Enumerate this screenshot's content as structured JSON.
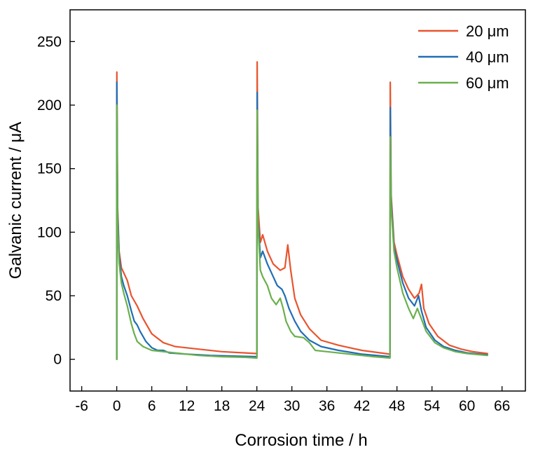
{
  "chart_data": {
    "type": "line",
    "xlabel": "Corrosion time / h",
    "ylabel": "Galvanic current / μA",
    "xlim": [
      -8,
      70
    ],
    "ylim": [
      -25,
      275
    ],
    "xticks": [
      -6,
      0,
      6,
      12,
      18,
      24,
      30,
      36,
      42,
      48,
      54,
      60,
      66
    ],
    "yticks": [
      0,
      50,
      100,
      150,
      200,
      250
    ],
    "grid": false,
    "legend_position": "top-right",
    "series": [
      {
        "name": "20 μm",
        "color": "#e8542e",
        "points": [
          [
            0,
            0
          ],
          [
            0.02,
            226
          ],
          [
            0.15,
            120
          ],
          [
            0.4,
            85
          ],
          [
            0.8,
            72
          ],
          [
            1.2,
            68
          ],
          [
            1.8,
            62
          ],
          [
            2.5,
            50
          ],
          [
            3.5,
            42
          ],
          [
            4.5,
            32
          ],
          [
            6,
            20
          ],
          [
            8,
            13
          ],
          [
            10,
            10
          ],
          [
            14,
            8
          ],
          [
            18,
            6
          ],
          [
            22,
            5
          ],
          [
            24,
            4.5
          ],
          [
            24.05,
            234
          ],
          [
            24.2,
            120
          ],
          [
            24.6,
            92
          ],
          [
            25,
            98
          ],
          [
            25.8,
            85
          ],
          [
            26.8,
            75
          ],
          [
            28,
            70
          ],
          [
            28.8,
            72
          ],
          [
            29.3,
            90
          ],
          [
            29.8,
            70
          ],
          [
            30.5,
            48
          ],
          [
            31.5,
            35
          ],
          [
            33,
            24
          ],
          [
            35,
            15
          ],
          [
            38,
            11
          ],
          [
            42,
            7
          ],
          [
            46,
            4.5
          ],
          [
            46.8,
            4
          ],
          [
            46.85,
            218
          ],
          [
            47,
            130
          ],
          [
            47.5,
            92
          ],
          [
            48,
            82
          ],
          [
            49,
            65
          ],
          [
            50,
            55
          ],
          [
            51,
            48
          ],
          [
            51.8,
            52
          ],
          [
            52.2,
            59
          ],
          [
            52.6,
            40
          ],
          [
            53.5,
            28
          ],
          [
            55,
            18
          ],
          [
            57,
            11
          ],
          [
            59,
            8
          ],
          [
            61,
            6
          ],
          [
            63.5,
            4.5
          ]
        ]
      },
      {
        "name": "40 μm",
        "color": "#1f6eb5",
        "points": [
          [
            0,
            0
          ],
          [
            0.02,
            218
          ],
          [
            0.15,
            115
          ],
          [
            0.4,
            82
          ],
          [
            0.8,
            65
          ],
          [
            1.2,
            58
          ],
          [
            1.8,
            50
          ],
          [
            2.5,
            38
          ],
          [
            3,
            30
          ],
          [
            3.5,
            27
          ],
          [
            4,
            22
          ],
          [
            5,
            14
          ],
          [
            6,
            9
          ],
          [
            7,
            7
          ],
          [
            8,
            7
          ],
          [
            9,
            5
          ],
          [
            12,
            4
          ],
          [
            16,
            3
          ],
          [
            20,
            2.5
          ],
          [
            24,
            2
          ],
          [
            24.05,
            210
          ],
          [
            24.2,
            110
          ],
          [
            24.6,
            80
          ],
          [
            25,
            85
          ],
          [
            25.8,
            75
          ],
          [
            26.8,
            65
          ],
          [
            27.5,
            58
          ],
          [
            28.3,
            55
          ],
          [
            28.8,
            50
          ],
          [
            29.5,
            40
          ],
          [
            30.5,
            30
          ],
          [
            31.5,
            22
          ],
          [
            33,
            15
          ],
          [
            35,
            10
          ],
          [
            38,
            7
          ],
          [
            42,
            4
          ],
          [
            46.8,
            2
          ],
          [
            46.85,
            198
          ],
          [
            47,
            125
          ],
          [
            47.5,
            88
          ],
          [
            48,
            78
          ],
          [
            49,
            60
          ],
          [
            50,
            48
          ],
          [
            51,
            42
          ],
          [
            51.7,
            50
          ],
          [
            52.2,
            38
          ],
          [
            53,
            25
          ],
          [
            54.5,
            15
          ],
          [
            56,
            10
          ],
          [
            58,
            7
          ],
          [
            60,
            5
          ],
          [
            63.5,
            3.5
          ]
        ]
      },
      {
        "name": "60 μm",
        "color": "#6ab04c",
        "points": [
          [
            0,
            0
          ],
          [
            0.02,
            200
          ],
          [
            0.15,
            105
          ],
          [
            0.4,
            76
          ],
          [
            0.8,
            60
          ],
          [
            1.2,
            52
          ],
          [
            1.8,
            42
          ],
          [
            2.5,
            28
          ],
          [
            3,
            20
          ],
          [
            3.5,
            14
          ],
          [
            4.5,
            10
          ],
          [
            6,
            7
          ],
          [
            8,
            6
          ],
          [
            10,
            5
          ],
          [
            14,
            3
          ],
          [
            18,
            2
          ],
          [
            22,
            1.5
          ],
          [
            24,
            1
          ],
          [
            24.05,
            196
          ],
          [
            24.2,
            105
          ],
          [
            24.6,
            70
          ],
          [
            25,
            65
          ],
          [
            25.8,
            58
          ],
          [
            26.5,
            48
          ],
          [
            27.3,
            43
          ],
          [
            28,
            48
          ],
          [
            28.5,
            40
          ],
          [
            29,
            30
          ],
          [
            29.8,
            22
          ],
          [
            30.5,
            18
          ],
          [
            32,
            17
          ],
          [
            33,
            13
          ],
          [
            34,
            7
          ],
          [
            36,
            6
          ],
          [
            40,
            4
          ],
          [
            44,
            2
          ],
          [
            46.8,
            1
          ],
          [
            46.85,
            175
          ],
          [
            47,
            120
          ],
          [
            47.5,
            85
          ],
          [
            48,
            72
          ],
          [
            49,
            52
          ],
          [
            50,
            40
          ],
          [
            50.8,
            32
          ],
          [
            51.5,
            40
          ],
          [
            52,
            34
          ],
          [
            53,
            22
          ],
          [
            54.5,
            13
          ],
          [
            56,
            9
          ],
          [
            58,
            6
          ],
          [
            60,
            4.5
          ],
          [
            63.5,
            3
          ]
        ]
      }
    ]
  }
}
